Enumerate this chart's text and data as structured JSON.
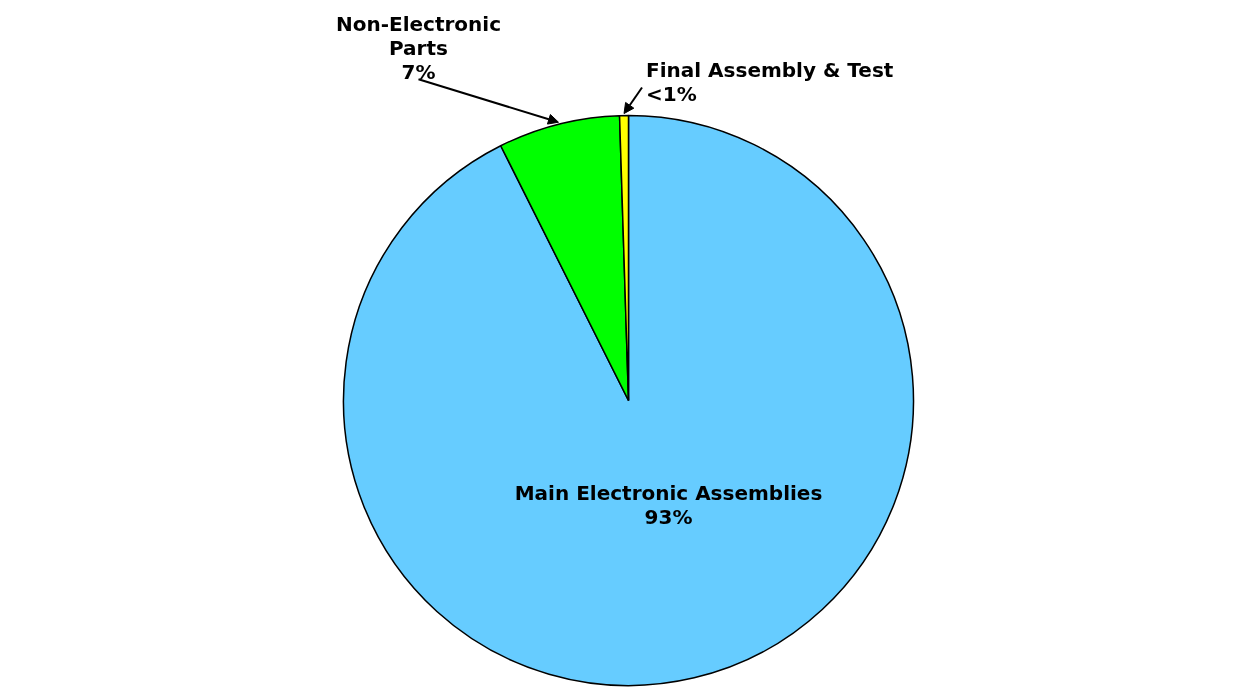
{
  "chart_data": {
    "type": "pie",
    "categories": [
      "Main Electronic Assemblies",
      "Non-Electronic\nParts",
      "Final Assembly & Test"
    ],
    "values": [
      92.6,
      6.9,
      0.5
    ],
    "colors": [
      "#66ccff",
      "#00ff00",
      "#ffff00"
    ],
    "value_labels": [
      "93%",
      "7%",
      "<1%"
    ]
  }
}
